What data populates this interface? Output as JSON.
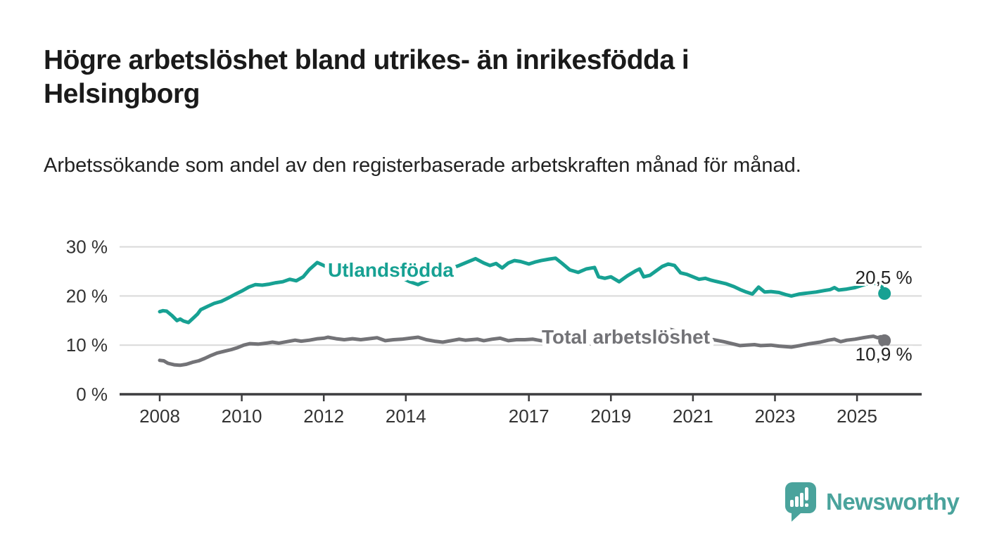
{
  "title": "Högre arbetslöshet bland utrikes- än inrikesfödda i Helsingborg",
  "subtitle": "Arbetssökande som andel av den registerbaserade arbetskraften månad för månad.",
  "branding": {
    "logo_text": "Newsworthy",
    "logo_color": "#4aa39c"
  },
  "chart_data": {
    "type": "line",
    "title": "Högre arbetslöshet bland utrikes- än inrikesfödda i Helsingborg",
    "subtitle": "Arbetssökande som andel av den registerbaserade arbetskraften månad för månad.",
    "unit": "%",
    "grid": "horizontal-only",
    "legend_position": "inline-labels-on-lines",
    "x_axis": {
      "range": [
        2007.6,
        2026.4
      ],
      "tick_years": [
        2008,
        2010,
        2012,
        2014,
        2017,
        2019,
        2021,
        2023,
        2025
      ],
      "tick_labels": [
        "2008",
        "2010",
        "2012",
        "2014",
        "2017",
        "2019",
        "2021",
        "2023",
        "2025"
      ]
    },
    "y_axis": {
      "range": [
        0,
        32
      ],
      "ticks": [
        0,
        10,
        20,
        30
      ],
      "tick_labels": [
        "0 %",
        "10 %",
        "20 %",
        "30 %"
      ]
    },
    "colors": {
      "axis": "#3d3d3f",
      "gridline": "#d9d9d9",
      "tick_text": "#333333",
      "value_label_text": "#222222"
    },
    "series": [
      {
        "name": "Utlandsfödda",
        "color": "#17a193",
        "end_label": "20,5 %",
        "end_value": 20.5,
        "points": [
          [
            2008.0,
            16.8
          ],
          [
            2008.08,
            17.0
          ],
          [
            2008.17,
            16.9
          ],
          [
            2008.3,
            16.0
          ],
          [
            2008.42,
            15.0
          ],
          [
            2008.5,
            15.3
          ],
          [
            2008.58,
            14.9
          ],
          [
            2008.7,
            14.6
          ],
          [
            2008.83,
            15.6
          ],
          [
            2008.92,
            16.3
          ],
          [
            2009.0,
            17.2
          ],
          [
            2009.17,
            17.9
          ],
          [
            2009.33,
            18.5
          ],
          [
            2009.5,
            18.9
          ],
          [
            2009.67,
            19.6
          ],
          [
            2009.83,
            20.3
          ],
          [
            2010.0,
            21.0
          ],
          [
            2010.17,
            21.8
          ],
          [
            2010.33,
            22.3
          ],
          [
            2010.5,
            22.2
          ],
          [
            2010.67,
            22.4
          ],
          [
            2010.83,
            22.7
          ],
          [
            2011.0,
            22.9
          ],
          [
            2011.17,
            23.4
          ],
          [
            2011.33,
            23.1
          ],
          [
            2011.5,
            23.9
          ],
          [
            2011.65,
            25.4
          ],
          [
            2011.84,
            26.8
          ],
          [
            2012.0,
            26.2
          ],
          [
            2012.1,
            25.8
          ],
          [
            2012.3,
            26.0
          ],
          [
            2012.5,
            26.3
          ],
          [
            2012.7,
            25.9
          ],
          [
            2012.9,
            26.2
          ],
          [
            2013.1,
            26.3
          ],
          [
            2013.3,
            25.9
          ],
          [
            2013.5,
            25.3
          ],
          [
            2013.7,
            24.6
          ],
          [
            2013.9,
            23.7
          ],
          [
            2014.1,
            22.9
          ],
          [
            2014.3,
            22.3
          ],
          [
            2014.5,
            23.1
          ],
          [
            2014.7,
            24.0
          ],
          [
            2014.9,
            24.9
          ],
          [
            2015.1,
            25.6
          ],
          [
            2015.3,
            26.2
          ],
          [
            2015.5,
            26.9
          ],
          [
            2015.7,
            27.6
          ],
          [
            2015.9,
            26.7
          ],
          [
            2016.05,
            26.2
          ],
          [
            2016.2,
            26.6
          ],
          [
            2016.35,
            25.7
          ],
          [
            2016.5,
            26.7
          ],
          [
            2016.65,
            27.2
          ],
          [
            2016.8,
            27.0
          ],
          [
            2017.0,
            26.5
          ],
          [
            2017.15,
            26.9
          ],
          [
            2017.3,
            27.2
          ],
          [
            2017.5,
            27.5
          ],
          [
            2017.65,
            27.7
          ],
          [
            2017.8,
            26.7
          ],
          [
            2018.0,
            25.3
          ],
          [
            2018.2,
            24.8
          ],
          [
            2018.4,
            25.5
          ],
          [
            2018.6,
            25.8
          ],
          [
            2018.7,
            23.9
          ],
          [
            2018.85,
            23.6
          ],
          [
            2019.0,
            23.9
          ],
          [
            2019.2,
            22.9
          ],
          [
            2019.4,
            24.1
          ],
          [
            2019.6,
            25.1
          ],
          [
            2019.7,
            25.5
          ],
          [
            2019.8,
            23.9
          ],
          [
            2019.95,
            24.2
          ],
          [
            2020.1,
            25.1
          ],
          [
            2020.25,
            26.0
          ],
          [
            2020.4,
            26.5
          ],
          [
            2020.55,
            26.2
          ],
          [
            2020.7,
            24.7
          ],
          [
            2020.85,
            24.4
          ],
          [
            2021.0,
            23.9
          ],
          [
            2021.15,
            23.4
          ],
          [
            2021.3,
            23.6
          ],
          [
            2021.45,
            23.2
          ],
          [
            2021.6,
            22.9
          ],
          [
            2021.8,
            22.5
          ],
          [
            2022.0,
            21.9
          ],
          [
            2022.15,
            21.3
          ],
          [
            2022.3,
            20.8
          ],
          [
            2022.45,
            20.4
          ],
          [
            2022.6,
            21.8
          ],
          [
            2022.75,
            20.8
          ],
          [
            2022.9,
            20.9
          ],
          [
            2023.1,
            20.7
          ],
          [
            2023.25,
            20.3
          ],
          [
            2023.4,
            20.0
          ],
          [
            2023.6,
            20.4
          ],
          [
            2023.8,
            20.6
          ],
          [
            2024.0,
            20.8
          ],
          [
            2024.2,
            21.1
          ],
          [
            2024.35,
            21.3
          ],
          [
            2024.45,
            21.7
          ],
          [
            2024.55,
            21.2
          ],
          [
            2024.75,
            21.4
          ],
          [
            2024.95,
            21.7
          ],
          [
            2025.1,
            22.1
          ],
          [
            2025.25,
            22.5
          ],
          [
            2025.4,
            22.9
          ],
          [
            2025.5,
            22.2
          ],
          [
            2025.58,
            22.4
          ],
          [
            2025.67,
            20.5
          ]
        ]
      },
      {
        "name": "Total arbetslöshet",
        "color": "#737377",
        "end_label": "10,9 %",
        "end_value": 10.9,
        "points": [
          [
            2008.0,
            6.9
          ],
          [
            2008.1,
            6.8
          ],
          [
            2008.2,
            6.3
          ],
          [
            2008.35,
            6.0
          ],
          [
            2008.5,
            5.9
          ],
          [
            2008.65,
            6.1
          ],
          [
            2008.8,
            6.5
          ],
          [
            2008.95,
            6.8
          ],
          [
            2009.1,
            7.3
          ],
          [
            2009.25,
            7.9
          ],
          [
            2009.4,
            8.4
          ],
          [
            2009.6,
            8.8
          ],
          [
            2009.75,
            9.1
          ],
          [
            2009.9,
            9.5
          ],
          [
            2010.05,
            10.0
          ],
          [
            2010.2,
            10.3
          ],
          [
            2010.4,
            10.2
          ],
          [
            2010.6,
            10.4
          ],
          [
            2010.75,
            10.6
          ],
          [
            2010.9,
            10.4
          ],
          [
            2011.1,
            10.7
          ],
          [
            2011.3,
            11.0
          ],
          [
            2011.45,
            10.8
          ],
          [
            2011.65,
            11.0
          ],
          [
            2011.85,
            11.3
          ],
          [
            2012.0,
            11.4
          ],
          [
            2012.1,
            11.6
          ],
          [
            2012.3,
            11.3
          ],
          [
            2012.5,
            11.1
          ],
          [
            2012.7,
            11.3
          ],
          [
            2012.9,
            11.1
          ],
          [
            2013.1,
            11.3
          ],
          [
            2013.3,
            11.5
          ],
          [
            2013.5,
            10.9
          ],
          [
            2013.7,
            11.1
          ],
          [
            2013.9,
            11.2
          ],
          [
            2014.1,
            11.4
          ],
          [
            2014.3,
            11.6
          ],
          [
            2014.5,
            11.1
          ],
          [
            2014.7,
            10.8
          ],
          [
            2014.9,
            10.6
          ],
          [
            2015.1,
            10.9
          ],
          [
            2015.3,
            11.2
          ],
          [
            2015.45,
            11.0
          ],
          [
            2015.6,
            11.1
          ],
          [
            2015.75,
            11.2
          ],
          [
            2015.9,
            10.9
          ],
          [
            2016.1,
            11.2
          ],
          [
            2016.3,
            11.4
          ],
          [
            2016.5,
            10.9
          ],
          [
            2016.7,
            11.1
          ],
          [
            2016.9,
            11.1
          ],
          [
            2017.1,
            11.2
          ],
          [
            2017.3,
            10.9
          ],
          [
            2017.6,
            10.7
          ],
          [
            2017.9,
            10.5
          ],
          [
            2018.2,
            10.4
          ],
          [
            2018.5,
            10.3
          ],
          [
            2018.8,
            10.3
          ],
          [
            2019.1,
            10.2
          ],
          [
            2019.4,
            10.3
          ],
          [
            2019.7,
            10.4
          ],
          [
            2019.9,
            10.8
          ],
          [
            2020.1,
            12.0
          ],
          [
            2020.3,
            13.4
          ],
          [
            2020.5,
            13.1
          ],
          [
            2020.7,
            12.6
          ],
          [
            2020.9,
            12.2
          ],
          [
            2021.1,
            11.8
          ],
          [
            2021.3,
            11.4
          ],
          [
            2021.5,
            11.1
          ],
          [
            2021.75,
            10.7
          ],
          [
            2022.0,
            10.2
          ],
          [
            2022.15,
            9.9
          ],
          [
            2022.3,
            10.0
          ],
          [
            2022.5,
            10.1
          ],
          [
            2022.65,
            9.9
          ],
          [
            2022.9,
            10.0
          ],
          [
            2023.1,
            9.8
          ],
          [
            2023.4,
            9.6
          ],
          [
            2023.6,
            9.9
          ],
          [
            2023.85,
            10.3
          ],
          [
            2024.1,
            10.6
          ],
          [
            2024.3,
            11.0
          ],
          [
            2024.45,
            11.2
          ],
          [
            2024.6,
            10.7
          ],
          [
            2024.75,
            11.0
          ],
          [
            2024.95,
            11.2
          ],
          [
            2025.15,
            11.5
          ],
          [
            2025.3,
            11.7
          ],
          [
            2025.4,
            11.8
          ],
          [
            2025.5,
            11.5
          ],
          [
            2025.58,
            11.7
          ],
          [
            2025.67,
            10.9
          ]
        ]
      }
    ]
  }
}
